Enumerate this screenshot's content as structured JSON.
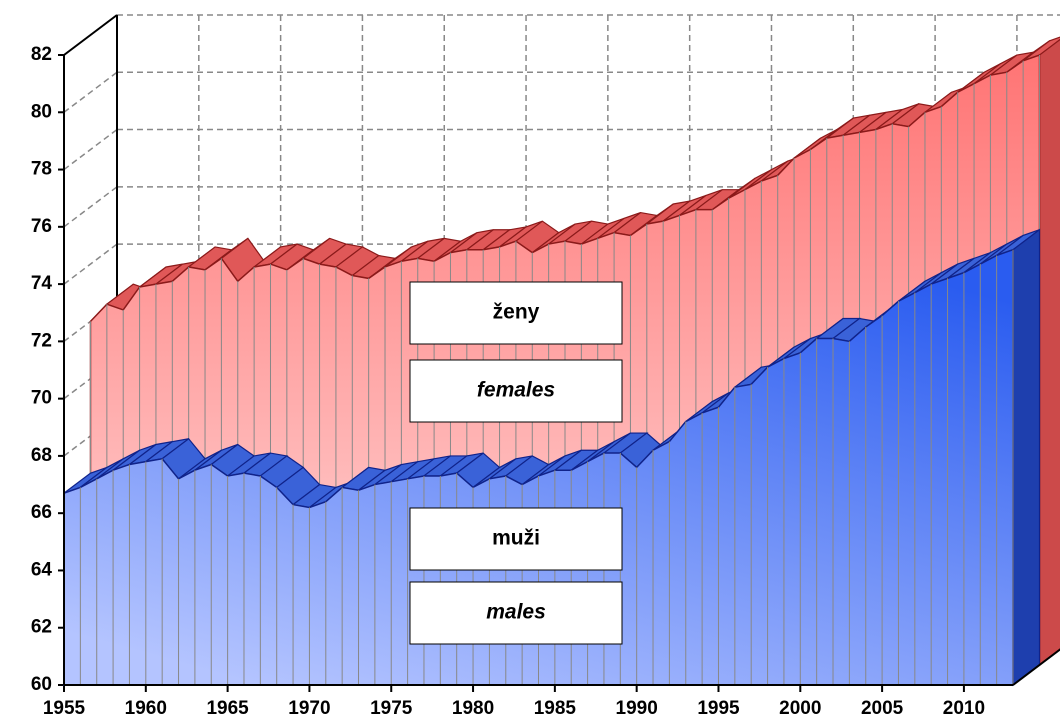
{
  "chart_data": {
    "type": "area3d",
    "xlim": [
      1955,
      2013
    ],
    "xticks": [
      1955,
      1960,
      1965,
      1970,
      1975,
      1980,
      1985,
      1990,
      1995,
      2000,
      2005,
      2010
    ],
    "ylim": [
      60,
      82
    ],
    "yticks": [
      60,
      62,
      64,
      66,
      68,
      70,
      72,
      74,
      76,
      78,
      80,
      82
    ],
    "grid": true,
    "x": [
      1955,
      1956,
      1957,
      1958,
      1959,
      1960,
      1961,
      1962,
      1963,
      1964,
      1965,
      1966,
      1967,
      1968,
      1969,
      1970,
      1971,
      1972,
      1973,
      1974,
      1975,
      1976,
      1977,
      1978,
      1979,
      1980,
      1981,
      1982,
      1983,
      1984,
      1985,
      1986,
      1987,
      1988,
      1989,
      1990,
      1991,
      1992,
      1993,
      1994,
      1995,
      1996,
      1997,
      1998,
      1999,
      2000,
      2001,
      2002,
      2003,
      2004,
      2005,
      2006,
      2007,
      2008,
      2009,
      2010,
      2011,
      2012,
      2013
    ],
    "series": [
      {
        "name": "ženy",
        "name_en": "females",
        "color": "#ff7474",
        "values": [
          72.0,
          72.6,
          72.4,
          73.2,
          73.3,
          73.4,
          73.9,
          73.8,
          74.2,
          73.4,
          73.9,
          74.0,
          73.8,
          74.2,
          74.0,
          73.9,
          73.6,
          73.5,
          73.9,
          74.1,
          74.2,
          74.1,
          74.4,
          74.5,
          74.5,
          74.6,
          74.8,
          74.4,
          74.7,
          74.8,
          74.7,
          74.9,
          75.1,
          75.0,
          75.4,
          75.5,
          75.7,
          75.9,
          75.9,
          76.3,
          76.6,
          76.9,
          77.1,
          77.7,
          78.0,
          78.4,
          78.5,
          78.6,
          78.7,
          78.9,
          78.8,
          79.3,
          79.5,
          80.0,
          80.3,
          80.6,
          80.7,
          81.1,
          81.3
        ]
      },
      {
        "name": "muži",
        "name_en": "males",
        "color": "#2a5cf0",
        "values": [
          66.7,
          66.9,
          67.2,
          67.5,
          67.7,
          67.8,
          67.9,
          67.2,
          67.5,
          67.7,
          67.3,
          67.4,
          67.3,
          66.9,
          66.3,
          66.2,
          66.4,
          66.9,
          66.8,
          67.0,
          67.1,
          67.2,
          67.3,
          67.3,
          67.4,
          66.9,
          67.2,
          67.3,
          67.0,
          67.3,
          67.5,
          67.5,
          67.8,
          68.1,
          68.1,
          67.6,
          68.2,
          68.5,
          69.2,
          69.5,
          69.7,
          70.4,
          70.5,
          71.1,
          71.4,
          71.6,
          72.1,
          72.1,
          72.0,
          72.5,
          72.9,
          73.4,
          73.7,
          74.0,
          74.2,
          74.4,
          74.7,
          75.0,
          75.2
        ]
      }
    ]
  }
}
